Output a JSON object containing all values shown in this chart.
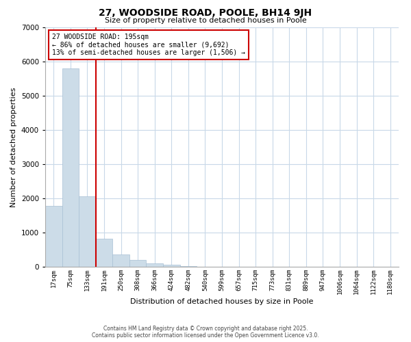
{
  "title": "27, WOODSIDE ROAD, POOLE, BH14 9JH",
  "subtitle": "Size of property relative to detached houses in Poole",
  "xlabel": "Distribution of detached houses by size in Poole",
  "ylabel": "Number of detached properties",
  "bar_labels": [
    "17sqm",
    "75sqm",
    "133sqm",
    "191sqm",
    "250sqm",
    "308sqm",
    "366sqm",
    "424sqm",
    "482sqm",
    "540sqm",
    "599sqm",
    "657sqm",
    "715sqm",
    "773sqm",
    "831sqm",
    "889sqm",
    "947sqm",
    "1006sqm",
    "1064sqm",
    "1122sqm",
    "1180sqm"
  ],
  "bar_values": [
    1780,
    5800,
    2070,
    830,
    360,
    210,
    100,
    70,
    30,
    10,
    5,
    0,
    0,
    0,
    0,
    0,
    0,
    0,
    0,
    0,
    0
  ],
  "bar_color": "#ccdce8",
  "bar_edgecolor": "#a8c0d4",
  "ylim": [
    0,
    7000
  ],
  "yticks": [
    0,
    1000,
    2000,
    3000,
    4000,
    5000,
    6000,
    7000
  ],
  "vline_x": 3.5,
  "vline_color": "#cc0000",
  "annotation_title": "27 WOODSIDE ROAD: 195sqm",
  "annotation_line1": "← 86% of detached houses are smaller (9,692)",
  "annotation_line2": "13% of semi-detached houses are larger (1,506) →",
  "annotation_box_color": "#cc0000",
  "footer1": "Contains HM Land Registry data © Crown copyright and database right 2025.",
  "footer2": "Contains public sector information licensed under the Open Government Licence v3.0.",
  "background_color": "#ffffff",
  "grid_color": "#c8d8e8"
}
